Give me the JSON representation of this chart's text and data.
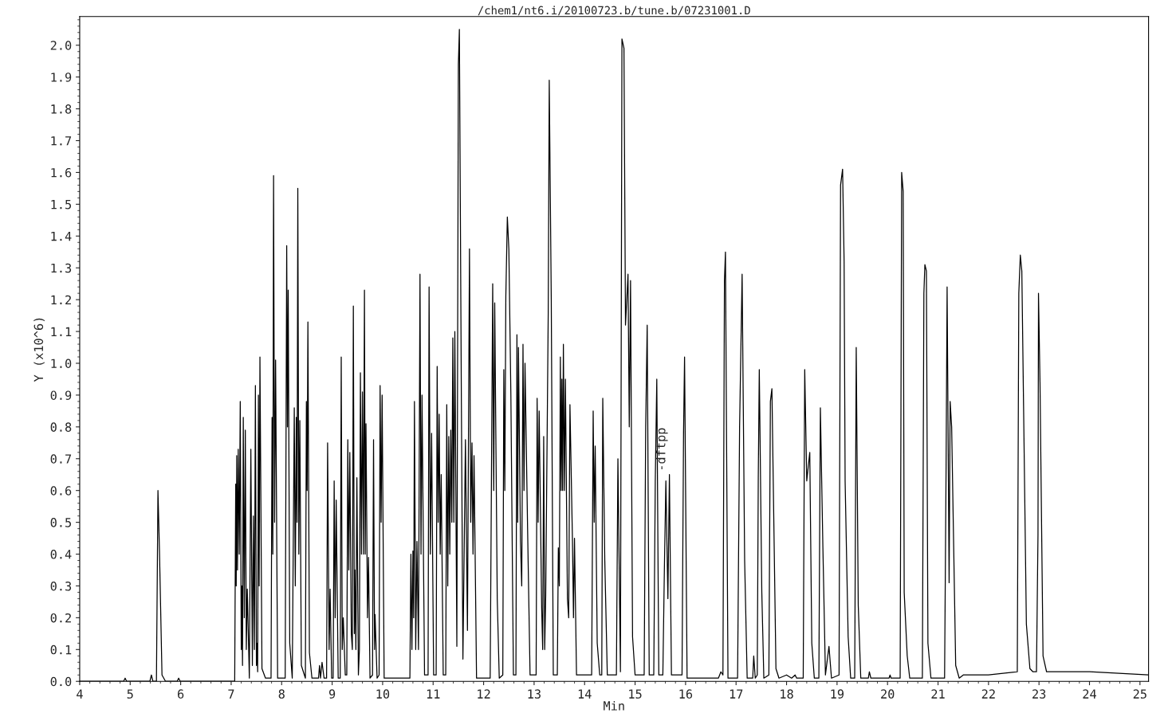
{
  "chart_data": {
    "type": "line",
    "title": "/chem1/nt6.i/20100723.b/tune.b/07231001.D",
    "xlabel": "Min",
    "ylabel": "Y (x10^6)",
    "annotations": [
      {
        "text": "-dftpp",
        "x": 15.53,
        "y": 0.66
      }
    ],
    "series": [
      {
        "color": "#000000",
        "x": [
          4.0,
          4.87,
          4.9,
          4.93,
          5.39,
          5.42,
          5.45,
          5.52,
          5.55,
          5.58,
          5.63,
          5.7,
          5.93,
          5.96,
          5.99,
          7.07,
          7.09,
          7.1,
          7.11,
          7.125,
          7.14,
          7.16,
          7.18,
          7.2,
          7.21,
          7.225,
          7.24,
          7.26,
          7.28,
          7.3,
          7.32,
          7.36,
          7.39,
          7.42,
          7.44,
          7.46,
          7.48,
          7.5,
          7.51,
          7.525,
          7.54,
          7.555,
          7.57,
          7.61,
          7.68,
          7.79,
          7.81,
          7.825,
          7.84,
          7.86,
          7.88,
          7.92,
          8.07,
          8.1,
          8.115,
          8.13,
          8.16,
          8.21,
          8.25,
          8.27,
          8.29,
          8.305,
          8.32,
          8.34,
          8.36,
          8.39,
          8.47,
          8.49,
          8.505,
          8.52,
          8.55,
          8.6,
          8.73,
          8.75,
          8.77,
          8.8,
          8.84,
          8.89,
          8.91,
          8.94,
          8.96,
          8.99,
          9.02,
          9.04,
          9.06,
          9.08,
          9.12,
          9.16,
          9.18,
          9.2,
          9.22,
          9.26,
          9.29,
          9.31,
          9.33,
          9.35,
          9.38,
          9.4,
          9.42,
          9.44,
          9.45,
          9.47,
          9.49,
          9.52,
          9.54,
          9.56,
          9.58,
          9.6,
          9.62,
          9.64,
          9.655,
          9.67,
          9.7,
          9.72,
          9.75,
          9.8,
          9.82,
          9.84,
          9.85,
          9.89,
          9.93,
          9.95,
          9.97,
          9.99,
          10.03,
          10.54,
          10.56,
          10.58,
          10.6,
          10.615,
          10.63,
          10.655,
          10.68,
          10.71,
          10.74,
          10.76,
          10.78,
          10.83,
          10.9,
          10.92,
          10.945,
          10.97,
          11.01,
          11.06,
          11.08,
          11.1,
          11.12,
          11.14,
          11.16,
          11.2,
          11.25,
          11.27,
          11.29,
          11.31,
          11.33,
          11.35,
          11.37,
          11.39,
          11.41,
          11.43,
          11.47,
          11.5,
          11.52,
          11.56,
          11.59,
          11.64,
          11.68,
          11.72,
          11.745,
          11.77,
          11.79,
          11.81,
          11.86,
          12.13,
          12.18,
          12.2,
          12.22,
          12.27,
          12.31,
          12.38,
          12.4,
          12.42,
          12.44,
          12.47,
          12.5,
          12.54,
          12.59,
          12.64,
          12.66,
          12.675,
          12.69,
          12.73,
          12.755,
          12.78,
          12.8,
          12.82,
          12.87,
          12.92,
          13.04,
          13.06,
          13.08,
          13.1,
          13.15,
          13.17,
          13.19,
          13.21,
          13.23,
          13.28,
          13.3,
          13.34,
          13.38,
          13.46,
          13.48,
          13.5,
          13.52,
          13.535,
          13.55,
          13.565,
          13.58,
          13.6,
          13.62,
          13.66,
          13.685,
          13.71,
          13.76,
          13.78,
          13.8,
          13.84,
          14.14,
          14.17,
          14.19,
          14.21,
          14.25,
          14.3,
          14.34,
          14.36,
          14.4,
          14.45,
          14.63,
          14.66,
          14.71,
          14.74,
          14.78,
          14.81,
          14.86,
          14.885,
          14.91,
          14.95,
          15.0,
          15.18,
          15.21,
          15.24,
          15.28,
          15.37,
          15.4,
          15.43,
          15.47,
          15.55,
          15.58,
          15.61,
          15.65,
          15.68,
          15.72,
          15.93,
          15.96,
          15.98,
          16.03,
          16.65,
          16.7,
          16.74,
          16.77,
          16.79,
          16.84,
          17.03,
          17.07,
          17.12,
          17.17,
          17.22,
          17.33,
          17.35,
          17.38,
          17.42,
          17.44,
          17.46,
          17.51,
          17.55,
          17.65,
          17.68,
          17.71,
          17.79,
          17.85,
          18.0,
          18.1,
          18.17,
          18.2,
          18.33,
          18.36,
          18.4,
          18.46,
          18.5,
          18.55,
          18.64,
          18.67,
          18.72,
          18.77,
          18.84,
          18.89,
          19.04,
          19.07,
          19.11,
          19.14,
          19.16,
          19.22,
          19.27,
          19.35,
          19.38,
          19.42,
          19.47,
          19.62,
          19.64,
          19.67,
          20.03,
          20.05,
          20.07,
          20.25,
          20.28,
          20.31,
          20.33,
          20.39,
          20.44,
          20.69,
          20.72,
          20.74,
          20.77,
          20.8,
          20.86,
          21.13,
          21.16,
          21.18,
          21.22,
          21.24,
          21.27,
          21.35,
          21.42,
          21.5,
          22.0,
          22.57,
          22.6,
          22.63,
          22.66,
          22.75,
          22.82,
          22.88,
          22.95,
          22.98,
          22.99,
          23.02,
          23.08,
          23.15,
          24.0,
          25.17
        ],
        "values": [
          0,
          0,
          0.01,
          0,
          0,
          0.02,
          0,
          0,
          0.6,
          0.41,
          0.02,
          0,
          0,
          0.01,
          0,
          0,
          0.62,
          0.3,
          0.71,
          0.35,
          0.73,
          0.4,
          0.88,
          0.1,
          0.3,
          0.05,
          0.83,
          0.2,
          0.79,
          0.1,
          0.29,
          0.01,
          0.73,
          0.05,
          0.52,
          0.1,
          0.93,
          0.05,
          0.12,
          0.03,
          0.9,
          0.3,
          1.02,
          0.04,
          0.01,
          0.01,
          0.83,
          0.4,
          1.59,
          0.5,
          1.01,
          0.01,
          0.01,
          1.37,
          0.8,
          1.23,
          0.12,
          0.01,
          0.86,
          0.3,
          0.83,
          0.5,
          1.55,
          0.4,
          0.82,
          0.05,
          0.01,
          0.88,
          0.6,
          1.13,
          0.09,
          0.01,
          0.01,
          0.05,
          0.01,
          0.06,
          0.01,
          0.01,
          0.75,
          0.1,
          0.29,
          0.01,
          0.01,
          0.63,
          0.2,
          0.57,
          0.01,
          0.01,
          1.02,
          0.1,
          0.2,
          0.02,
          0.02,
          0.76,
          0.35,
          0.72,
          0.15,
          0.1,
          1.18,
          0.15,
          0.35,
          0.1,
          0.64,
          0.02,
          0.1,
          0.97,
          0.4,
          0.91,
          0.4,
          1.23,
          0.4,
          0.81,
          0.2,
          0.39,
          0.01,
          0.02,
          0.76,
          0.1,
          0.21,
          0.01,
          0.02,
          0.93,
          0.5,
          0.9,
          0.01,
          0.01,
          0.4,
          0.1,
          0.41,
          0.2,
          0.88,
          0.1,
          0.44,
          0.1,
          1.28,
          0.4,
          0.9,
          0.02,
          0.02,
          1.24,
          0.4,
          0.78,
          0.02,
          0.02,
          0.99,
          0.5,
          0.84,
          0.4,
          0.65,
          0.02,
          0.02,
          0.87,
          0.3,
          0.77,
          0.4,
          0.79,
          0.5,
          1.08,
          0.5,
          1.1,
          0.11,
          1.94,
          2.05,
          0.87,
          0.07,
          0.76,
          0.16,
          1.36,
          0.5,
          0.75,
          0.4,
          0.71,
          0.01,
          0.01,
          1.25,
          0.6,
          1.19,
          0.26,
          0.01,
          0.02,
          0.98,
          0.6,
          1.21,
          1.46,
          1.36,
          0.9,
          0.02,
          0.02,
          1.09,
          0.5,
          1.05,
          0.44,
          0.3,
          1.06,
          0.6,
          1.0,
          0.49,
          0.02,
          0.02,
          0.89,
          0.5,
          0.85,
          0.23,
          0.1,
          0.77,
          0.1,
          0.27,
          1.16,
          1.89,
          1.2,
          0.02,
          0.02,
          0.42,
          0.3,
          1.02,
          0.6,
          0.95,
          0.6,
          1.06,
          0.6,
          0.95,
          0.26,
          0.2,
          0.87,
          0.44,
          0.2,
          0.45,
          0.02,
          0.02,
          0.85,
          0.5,
          0.74,
          0.12,
          0.02,
          0.02,
          0.89,
          0.38,
          0.02,
          0.02,
          0.7,
          0.03,
          2.02,
          1.99,
          1.12,
          1.28,
          0.8,
          1.26,
          0.14,
          0.02,
          0.02,
          0.8,
          1.12,
          0.02,
          0.02,
          0.63,
          0.95,
          0.02,
          0.02,
          0.35,
          0.63,
          0.26,
          0.65,
          0.02,
          0.02,
          0.78,
          1.02,
          0.01,
          0.01,
          0.03,
          0.02,
          1.26,
          1.35,
          0.01,
          0.01,
          0.8,
          1.28,
          0.38,
          0.01,
          0.01,
          0.08,
          0.01,
          0.02,
          0.64,
          0.98,
          0.28,
          0.01,
          0.02,
          0.88,
          0.92,
          0.04,
          0.01,
          0.02,
          0.01,
          0.02,
          0.01,
          0.01,
          0.98,
          0.63,
          0.72,
          0.12,
          0.01,
          0.01,
          0.86,
          0.42,
          0.02,
          0.11,
          0.01,
          0.02,
          1.56,
          1.61,
          1.32,
          0.63,
          0.14,
          0.01,
          0.01,
          1.05,
          0.24,
          0.01,
          0.01,
          0.03,
          0.01,
          0.01,
          0.02,
          0.01,
          0.01,
          1.6,
          1.54,
          0.28,
          0.08,
          0.01,
          0.01,
          1.22,
          1.31,
          1.29,
          0.12,
          0.01,
          0.01,
          0.68,
          1.24,
          0.31,
          0.88,
          0.8,
          0.05,
          0.01,
          0.02,
          0.02,
          0.03,
          1.22,
          1.34,
          1.29,
          0.18,
          0.04,
          0.03,
          0.03,
          0.46,
          1.22,
          0.94,
          0.08,
          0.03,
          0.03,
          0.02
        ]
      }
    ],
    "xlim": [
      4,
      25.17
    ],
    "ylim": [
      0,
      2.09
    ],
    "xticks": [
      4,
      5,
      6,
      7,
      8,
      9,
      10,
      11,
      12,
      13,
      14,
      15,
      16,
      17,
      18,
      19,
      20,
      21,
      22,
      23,
      24,
      25
    ],
    "yticks": [
      {
        "value": 0,
        "label": "0.0"
      },
      {
        "value": 0.1,
        "label": "0.1"
      },
      {
        "value": 0.2,
        "label": "0.2"
      },
      {
        "value": 0.3,
        "label": "0.3"
      },
      {
        "value": 0.4,
        "label": "0.4"
      },
      {
        "value": 0.5,
        "label": "0.5"
      },
      {
        "value": 0.6,
        "label": "0.6"
      },
      {
        "value": 0.7,
        "label": "0.7"
      },
      {
        "value": 0.8,
        "label": "0.8"
      },
      {
        "value": 0.9,
        "label": "0.9"
      },
      {
        "value": 1.0,
        "label": "1.0"
      },
      {
        "value": 1.1,
        "label": "1.1"
      },
      {
        "value": 1.2,
        "label": "1.2"
      },
      {
        "value": 1.3,
        "label": "1.3"
      },
      {
        "value": 1.4,
        "label": "1.4"
      },
      {
        "value": 1.5,
        "label": "1.5"
      },
      {
        "value": 1.6,
        "label": "1.6"
      },
      {
        "value": 1.7,
        "label": "1.7"
      },
      {
        "value": 1.8,
        "label": "1.8"
      },
      {
        "value": 1.9,
        "label": "1.9"
      },
      {
        "value": 2.0,
        "label": "2.0"
      }
    ]
  }
}
